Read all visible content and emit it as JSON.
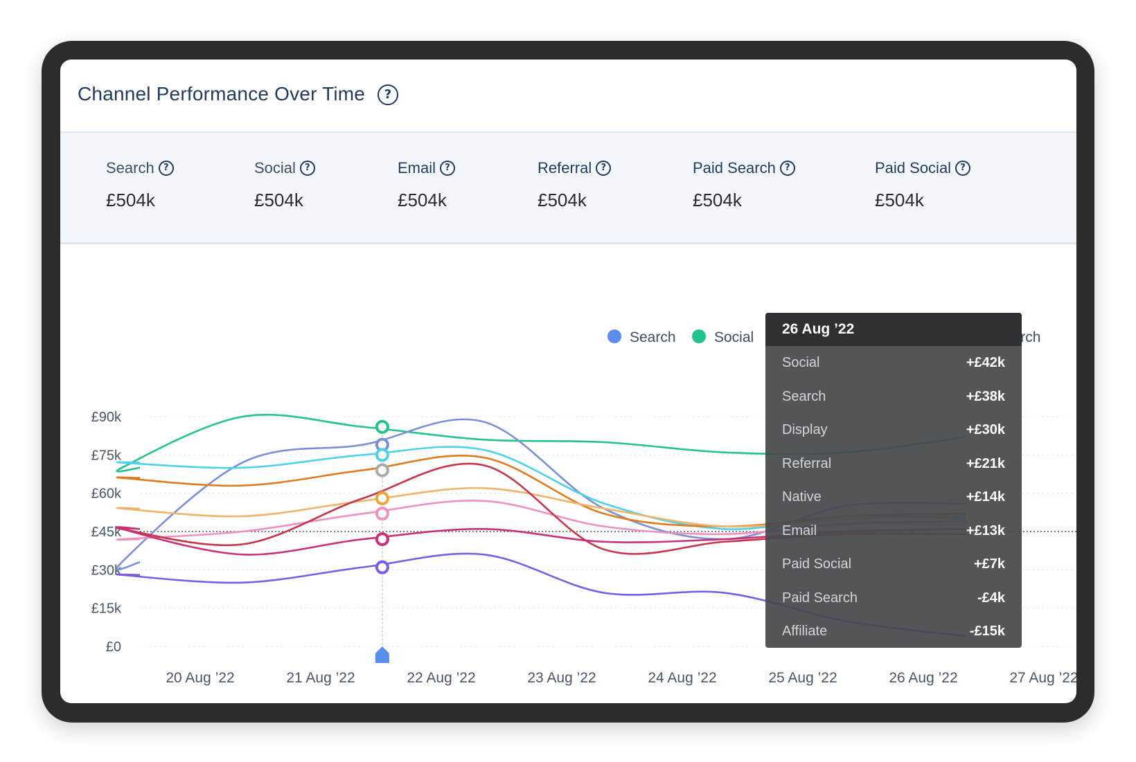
{
  "title": "Channel Performance Over Time",
  "kpis": [
    {
      "label": "Search",
      "value": "£504k"
    },
    {
      "label": "Social",
      "value": "£504k"
    },
    {
      "label": "Email",
      "value": "£504k"
    },
    {
      "label": "Referral",
      "value": "£504k"
    },
    {
      "label": "Paid Search",
      "value": "£504k"
    },
    {
      "label": "Paid Social",
      "value": "£504k"
    }
  ],
  "tooltip": {
    "date": "26 Aug ’22",
    "rows": [
      {
        "label": "Social",
        "value": "+£42k"
      },
      {
        "label": "Search",
        "value": "+£38k"
      },
      {
        "label": "Display",
        "value": "+£30k"
      },
      {
        "label": "Referral",
        "value": "+£21k"
      },
      {
        "label": "Native",
        "value": "+£14k"
      },
      {
        "label": "Email",
        "value": "+£13k"
      },
      {
        "label": "Paid Social",
        "value": "+£7k"
      },
      {
        "label": "Paid Search",
        "value": "-£4k"
      },
      {
        "label": "Affiliate",
        "value": "-£15k"
      }
    ]
  },
  "chart_data": {
    "type": "line",
    "x": [
      "20 Aug ’22",
      "21 Aug ’22",
      "22 Aug ’22",
      "23 Aug ’22",
      "24 Aug ’22",
      "25 Aug ’22",
      "26 Aug ’22",
      "27 Aug ’22"
    ],
    "y_ticks": [
      "£0",
      "£15k",
      "£30k",
      "£45k",
      "£60k",
      "£75k",
      "£90k"
    ],
    "ylim": [
      0,
      90
    ],
    "y_unit": "k",
    "reference_value": 45,
    "legend": [
      {
        "name": "Search",
        "color": "#5b8def"
      },
      {
        "name": "Social",
        "color": "#22c38e"
      },
      {
        "name": "Email",
        "color": "#7a5ce6"
      },
      {
        "name": "Referral",
        "color": "#4cd2eb"
      },
      {
        "name": "Paid Search",
        "color": "#d9344b"
      }
    ],
    "legend_position": "top-right",
    "grid": true,
    "highlight_x": "22 Aug ’22",
    "series": [
      {
        "color": "#22c38e",
        "values": [
          70,
          90,
          86,
          81,
          80,
          76,
          76,
          82
        ]
      },
      {
        "color": "#7b8fd8",
        "values": [
          33,
          72,
          79,
          88,
          54,
          42,
          55,
          56
        ]
      },
      {
        "color": "#4cd2eb",
        "values": [
          72,
          70,
          75,
          77,
          56,
          46,
          51,
          50
        ]
      },
      {
        "color": "#e07b22",
        "values": [
          66,
          63,
          69,
          74,
          52,
          47,
          51,
          52
        ]
      },
      {
        "color": "#f0b36a",
        "values": [
          54,
          51,
          57,
          62,
          54,
          47,
          50,
          51
        ]
      },
      {
        "color": "#f090c0",
        "values": [
          42,
          45,
          52,
          57,
          47,
          44,
          48,
          49
        ]
      },
      {
        "color": "#c9344a",
        "values": [
          46,
          40,
          58,
          71,
          38,
          41,
          44,
          44
        ]
      },
      {
        "color": "#c9307a",
        "values": [
          46,
          36,
          42,
          46,
          41,
          42,
          45,
          46
        ]
      },
      {
        "color": "#7a5ce6",
        "values": [
          28,
          25,
          31,
          36,
          21,
          21,
          10,
          4
        ]
      }
    ],
    "highlight_markers": [
      {
        "color": "#22c38e",
        "value": 86
      },
      {
        "color": "#7b8fd8",
        "value": 79
      },
      {
        "color": "#4cd2eb",
        "value": 75
      },
      {
        "color": "#aaaaaa",
        "value": 69
      },
      {
        "color": "#f0a33a",
        "value": 58
      },
      {
        "color": "#f090c0",
        "value": 52
      },
      {
        "color": "#c9307a",
        "value": 42
      },
      {
        "color": "#7a5ce6",
        "value": 31
      }
    ]
  }
}
